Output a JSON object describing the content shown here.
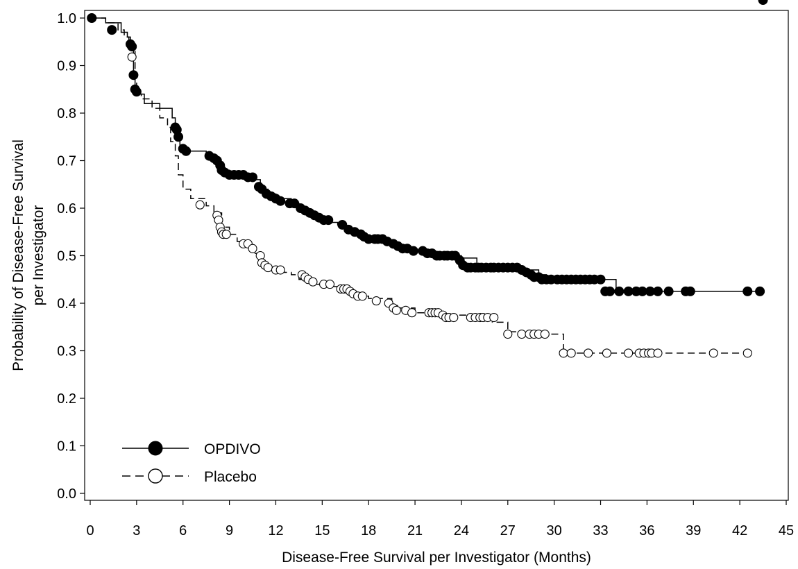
{
  "chart_data": {
    "type": "line",
    "subtype": "kaplan-meier",
    "title": "",
    "xlabel": "Disease-Free Survival per Investigator (Months)",
    "ylabel_line1": "Probability of Disease-Free Survival",
    "ylabel_line2": "per Investigator",
    "xlim": [
      0,
      45
    ],
    "ylim": [
      0,
      1.0
    ],
    "x_ticks": [
      "0",
      "3",
      "6",
      "9",
      "12",
      "15",
      "18",
      "21",
      "24",
      "27",
      "30",
      "33",
      "36",
      "39",
      "42",
      "45"
    ],
    "y_ticks": [
      "0.0",
      "0.1",
      "0.2",
      "0.3",
      "0.4",
      "0.5",
      "0.6",
      "0.7",
      "0.8",
      "0.9",
      "1.0"
    ],
    "grid": false,
    "legend_position": "bottom-left",
    "series": [
      {
        "name": "OPDIVO",
        "color": "#000000",
        "line_style": "solid",
        "marker": "filled-circle",
        "x": [
          0,
          1.0,
          2.0,
          2.4,
          2.6,
          2.8,
          2.9,
          3.0,
          3.5,
          4.5,
          5.3,
          5.5,
          5.6,
          5.8,
          6.0,
          7.5,
          8.0,
          8.3,
          8.5,
          9.0,
          10.0,
          10.5,
          11.0,
          11.5,
          12.0,
          13.0,
          13.5,
          14.0,
          14.5,
          15.0,
          15.5,
          16.0,
          16.5,
          17.0,
          17.5,
          18.0,
          19.0,
          19.5,
          20.0,
          21.5,
          22.0,
          23.0,
          24.0,
          25.0,
          27.0,
          28.0,
          29.0,
          29.5,
          30.0,
          33.0,
          33.5,
          34.0,
          43.5
        ],
        "y": [
          1.0,
          0.99,
          0.97,
          0.96,
          0.94,
          0.88,
          0.85,
          0.84,
          0.82,
          0.81,
          0.79,
          0.76,
          0.75,
          0.73,
          0.72,
          0.71,
          0.7,
          0.69,
          0.68,
          0.675,
          0.665,
          0.66,
          0.64,
          0.63,
          0.62,
          0.61,
          0.6,
          0.59,
          0.58,
          0.575,
          0.57,
          0.565,
          0.555,
          0.545,
          0.535,
          0.535,
          0.53,
          0.52,
          0.51,
          0.51,
          0.505,
          0.5,
          0.495,
          0.475,
          0.475,
          0.47,
          0.46,
          0.455,
          0.45,
          0.45,
          0.45,
          0.425,
          0.425
        ],
        "censor_x": [
          0.1,
          1.4,
          2.6,
          2.7,
          2.8,
          2.9,
          3.0,
          5.5,
          5.6,
          5.7,
          6.0,
          6.2,
          7.7,
          8.0,
          8.2,
          8.4,
          8.5,
          8.7,
          9.0,
          9.3,
          9.6,
          9.9,
          10.2,
          10.5,
          10.9,
          11.1,
          11.4,
          11.7,
          12.0,
          12.3,
          12.9,
          13.2,
          13.6,
          13.9,
          14.2,
          14.5,
          14.8,
          15.1,
          15.4,
          16.3,
          16.7,
          17.1,
          17.5,
          17.7,
          18.0,
          18.4,
          18.6,
          18.9,
          19.2,
          19.6,
          19.9,
          20.2,
          20.5,
          20.9,
          21.5,
          21.8,
          22.1,
          22.4,
          22.6,
          22.9,
          23.1,
          23.4,
          23.6,
          23.9,
          24.1,
          24.4,
          24.6,
          24.9,
          25.1,
          25.3,
          25.6,
          25.9,
          26.1,
          26.4,
          26.7,
          27.0,
          27.3,
          27.6,
          27.9,
          28.2,
          28.5,
          28.7,
          29.0,
          29.2,
          29.5,
          29.8,
          30.2,
          30.5,
          30.8,
          31.1,
          31.4,
          31.7,
          32.0,
          32.3,
          32.6,
          33.0,
          33.3,
          33.6,
          34.2,
          34.8,
          35.3,
          35.7,
          36.2,
          36.7,
          37.4,
          38.5,
          38.8,
          42.5,
          43.3,
          43.5
        ],
        "censor_y": [
          1.0,
          0.975,
          0.945,
          0.94,
          0.88,
          0.85,
          0.845,
          0.77,
          0.765,
          0.75,
          0.725,
          0.72,
          0.71,
          0.705,
          0.7,
          0.69,
          0.68,
          0.675,
          0.67,
          0.67,
          0.67,
          0.67,
          0.665,
          0.665,
          0.645,
          0.64,
          0.63,
          0.625,
          0.62,
          0.615,
          0.61,
          0.61,
          0.6,
          0.595,
          0.59,
          0.585,
          0.58,
          0.575,
          0.575,
          0.565,
          0.555,
          0.55,
          0.545,
          0.54,
          0.535,
          0.535,
          0.535,
          0.535,
          0.53,
          0.525,
          0.52,
          0.515,
          0.515,
          0.51,
          0.51,
          0.505,
          0.505,
          0.5,
          0.5,
          0.5,
          0.5,
          0.5,
          0.5,
          0.49,
          0.48,
          0.475,
          0.475,
          0.475,
          0.475,
          0.475,
          0.475,
          0.475,
          0.475,
          0.475,
          0.475,
          0.475,
          0.475,
          0.475,
          0.47,
          0.465,
          0.46,
          0.455,
          0.455,
          0.45,
          0.45,
          0.45,
          0.45,
          0.45,
          0.45,
          0.45,
          0.45,
          0.45,
          0.45,
          0.45,
          0.45,
          0.45,
          0.425,
          0.425,
          0.425,
          0.425,
          0.425,
          0.425,
          0.425,
          0.425,
          0.425,
          0.425,
          0.425,
          0.425,
          0.425
        ]
      },
      {
        "name": "Placebo",
        "color": "#000000",
        "line_style": "dashed",
        "marker": "open-circle",
        "x": [
          0,
          1.0,
          1.8,
          2.2,
          2.5,
          2.7,
          2.9,
          3.0,
          3.3,
          4.0,
          4.5,
          5.0,
          5.2,
          5.5,
          5.7,
          6.0,
          6.5,
          7.5,
          8.0,
          8.5,
          9.0,
          9.5,
          10.0,
          10.5,
          11.0,
          11.5,
          12.0,
          12.5,
          13.0,
          13.5,
          14.0,
          14.5,
          15.0,
          16.0,
          17.0,
          17.5,
          18.0,
          19.5,
          20.0,
          21.0,
          22.0,
          23.0,
          26.0,
          27.0,
          28.0,
          30.6,
          42.5
        ],
        "y": [
          1.0,
          0.99,
          0.975,
          0.96,
          0.95,
          0.93,
          0.87,
          0.84,
          0.83,
          0.81,
          0.79,
          0.77,
          0.74,
          0.71,
          0.67,
          0.64,
          0.62,
          0.605,
          0.59,
          0.56,
          0.545,
          0.53,
          0.52,
          0.505,
          0.49,
          0.475,
          0.47,
          0.465,
          0.46,
          0.45,
          0.445,
          0.44,
          0.435,
          0.43,
          0.42,
          0.415,
          0.41,
          0.395,
          0.39,
          0.38,
          0.38,
          0.375,
          0.36,
          0.34,
          0.335,
          0.295,
          0.295
        ],
        "censor_x": [
          2.7,
          7.1,
          8.2,
          8.3,
          8.4,
          8.5,
          8.6,
          8.8,
          9.9,
          10.2,
          10.5,
          11.0,
          11.1,
          11.3,
          11.5,
          12.0,
          12.3,
          13.7,
          13.9,
          14.1,
          14.4,
          15.1,
          15.5,
          16.2,
          16.4,
          16.6,
          16.8,
          17.0,
          17.3,
          17.6,
          18.5,
          19.3,
          19.6,
          19.8,
          20.4,
          20.8,
          21.9,
          22.1,
          22.3,
          22.5,
          22.8,
          23.0,
          23.2,
          23.5,
          24.6,
          24.9,
          25.2,
          25.4,
          25.7,
          26.1,
          27.0,
          27.9,
          28.4,
          28.7,
          29.0,
          29.4,
          30.6,
          31.1,
          32.2,
          33.4,
          34.8,
          35.5,
          35.8,
          36.1,
          36.3,
          36.7,
          40.3,
          42.5
        ],
        "censor_y": [
          0.918,
          0.607,
          0.585,
          0.575,
          0.56,
          0.55,
          0.545,
          0.545,
          0.525,
          0.525,
          0.515,
          0.5,
          0.485,
          0.48,
          0.475,
          0.47,
          0.47,
          0.46,
          0.455,
          0.45,
          0.445,
          0.44,
          0.44,
          0.43,
          0.43,
          0.43,
          0.425,
          0.42,
          0.415,
          0.415,
          0.405,
          0.4,
          0.39,
          0.385,
          0.385,
          0.38,
          0.38,
          0.38,
          0.38,
          0.38,
          0.375,
          0.37,
          0.37,
          0.37,
          0.37,
          0.37,
          0.37,
          0.37,
          0.37,
          0.37,
          0.335,
          0.335,
          0.335,
          0.335,
          0.335,
          0.335,
          0.295,
          0.295,
          0.295,
          0.295,
          0.295,
          0.295,
          0.295,
          0.295,
          0.295,
          0.295,
          0.295,
          0.295
        ]
      }
    ]
  }
}
